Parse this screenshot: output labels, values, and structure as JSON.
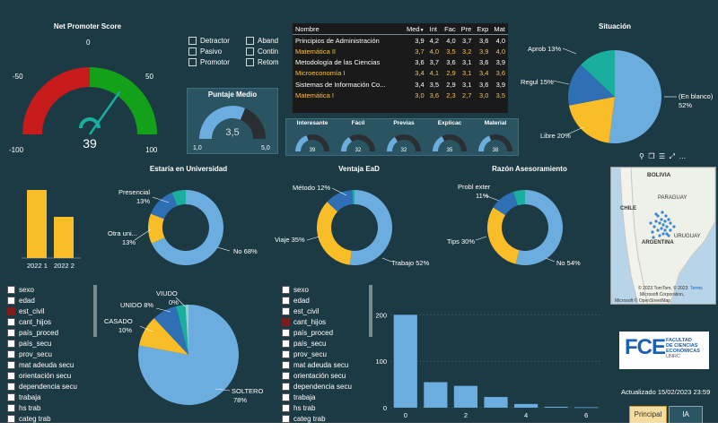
{
  "colors": {
    "bg": "#1c3a44",
    "blue": "#6cade0",
    "darkblue": "#2f6fb6",
    "yellow": "#f9bd27",
    "teal": "#1aae9f",
    "darkseg": "#2a2f33",
    "red": "#c81b1b",
    "green": "#13a11a"
  },
  "nps": {
    "title": "Net Promoter Score",
    "value": "39",
    "min": "-100",
    "max": "100",
    "tick_m50": "-50",
    "tick_0": "0",
    "tick_50": "50",
    "value_num": 39
  },
  "legend_nps": [
    {
      "label": "Detractor"
    },
    {
      "label": "Aband"
    },
    {
      "label": "Pasivo"
    },
    {
      "label": "Contin"
    },
    {
      "label": "Promotor"
    },
    {
      "label": "Retom"
    }
  ],
  "puntaje": {
    "title": "Puntaje Medio",
    "value": "3,5",
    "min": "1,0",
    "max": "5,0",
    "value_num": 3.5
  },
  "table": {
    "headers": [
      "Nombre",
      "Med",
      "Int",
      "Fac",
      "Pre",
      "Exp",
      "Mat"
    ],
    "rows": [
      {
        "name": "Principios de Administración",
        "vals": [
          "3,9",
          "4,2",
          "4,0",
          "3,7",
          "3,6",
          "4,0"
        ],
        "hl": false
      },
      {
        "name": "Matemática II",
        "vals": [
          "3,7",
          "4,0",
          "3,5",
          "3,2",
          "3,9",
          "4,0"
        ],
        "hl": true
      },
      {
        "name": "Metodología de las Ciencias",
        "vals": [
          "3,6",
          "3,7",
          "3,6",
          "3,1",
          "3,6",
          "3,9"
        ],
        "hl": false
      },
      {
        "name": "Microeconomía I",
        "vals": [
          "3,4",
          "4,1",
          "2,9",
          "3,1",
          "3,4",
          "3,6"
        ],
        "hl": true
      },
      {
        "name": "Sistemas de Información Co...",
        "vals": [
          "3,4",
          "3,5",
          "2,9",
          "3,1",
          "3,6",
          "3,9"
        ],
        "hl": false
      },
      {
        "name": "Matemática I",
        "vals": [
          "3,0",
          "3,6",
          "2,3",
          "2,7",
          "3,0",
          "3,5"
        ],
        "hl": true
      }
    ]
  },
  "mini_gauges": [
    {
      "label": "Interesante",
      "value": "39",
      "frac": 0.39
    },
    {
      "label": "Fácil",
      "value": "32",
      "frac": 0.32
    },
    {
      "label": "Previas",
      "value": "32",
      "frac": 0.32
    },
    {
      "label": "Explicac",
      "value": "35",
      "frac": 0.35
    },
    {
      "label": "Material",
      "value": "38",
      "frac": 0.38
    }
  ],
  "situacion": {
    "title": "Situación",
    "labels": {
      "aprob": "Aprob 13%",
      "regul": "Regul 15%",
      "libre": "Libre 20%",
      "blanco": "(En blanco)",
      "blanco_pct": "52%"
    }
  },
  "visual_icons": [
    "pin-icon",
    "copy-icon",
    "filter-icon",
    "focus-icon",
    "more-icon"
  ],
  "estaria": {
    "title": "Estaría en Universidad",
    "bars": [
      {
        "label": "2022 1",
        "value": 1.0
      },
      {
        "label": "2022 2",
        "value": 0.6
      }
    ],
    "labels": {
      "presencial": "Presencial",
      "presencial_pct": "13%",
      "otra": "Otra uni...",
      "otra_pct": "13%",
      "no": "No 68%"
    }
  },
  "ventaja": {
    "title": "Ventaja EaD",
    "labels": {
      "metodo": "Método 12%",
      "viaje": "Viaje 35%",
      "trabajo": "Trabajo 52%"
    }
  },
  "razon": {
    "title": "Razón Asesoramiento",
    "labels": {
      "probl": "Probl exter",
      "probl_pct": "11%",
      "tips": "Tips 30%",
      "no": "No 54%"
    }
  },
  "map": {
    "bolivia": "BOLIVIA",
    "paraguay": "PARAGUAY",
    "chile": "CHILE",
    "uruguay": "URUGUAY",
    "argentina": "ARGENTINA",
    "credit1": "© 2023 TomTom, © 2023",
    "credit1b": "Terms",
    "credit2": "Microsoft Corporation,",
    "credit3": "Microsoft © OpenStreetMap"
  },
  "fields_left": [
    {
      "label": "sexo",
      "red": false
    },
    {
      "label": "edad",
      "red": false
    },
    {
      "label": "est_civil",
      "red": true
    },
    {
      "label": "cant_hijos",
      "red": false
    },
    {
      "label": "país_proced",
      "red": false
    },
    {
      "label": "país_secu",
      "red": false
    },
    {
      "label": "prov_secu",
      "red": false
    },
    {
      "label": "mat adeuda secu",
      "red": false
    },
    {
      "label": "orientación secu",
      "red": false
    },
    {
      "label": "dependencia secu",
      "red": false
    },
    {
      "label": "trabaja",
      "red": false
    },
    {
      "label": "hs trab",
      "red": false
    },
    {
      "label": "categ trab",
      "red": false
    }
  ],
  "fields_right": [
    {
      "label": "sexo",
      "red": false
    },
    {
      "label": "edad",
      "red": false
    },
    {
      "label": "est_civil",
      "red": false
    },
    {
      "label": "cant_hijos",
      "red": true
    },
    {
      "label": "país_proced",
      "red": false
    },
    {
      "label": "país_secu",
      "red": false
    },
    {
      "label": "prov_secu",
      "red": false
    },
    {
      "label": "mat adeuda secu",
      "red": false
    },
    {
      "label": "orientación secu",
      "red": false
    },
    {
      "label": "dependencia secu",
      "red": false
    },
    {
      "label": "trabaja",
      "red": false
    },
    {
      "label": "hs trab",
      "red": false
    },
    {
      "label": "categ trab",
      "red": false
    }
  ],
  "civil": {
    "labels": {
      "viudo": "VIUDO",
      "viudo_pct": "0%",
      "unido": "UNIDO 8%",
      "casado": "CASADO",
      "casado_pct": "10%",
      "soltero": "SOLTERO",
      "soltero_pct": "78%"
    }
  },
  "chart_data": {
    "type": "bar",
    "x": [
      0,
      1,
      2,
      3,
      4,
      5,
      6
    ],
    "values": [
      200,
      55,
      47,
      23,
      8,
      2,
      1
    ],
    "xticks": [
      "0",
      "2",
      "4",
      "6"
    ],
    "yticks": [
      "0",
      "100",
      "200"
    ],
    "ylim": [
      0,
      220
    ]
  },
  "logo": {
    "big": "FCE",
    "line1": "FACULTAD",
    "line2": "DE CIENCIAS",
    "line3": "ECONÓMICAS",
    "line4": "UNRC"
  },
  "updated": "Actualizado 15/02/2023 23:59",
  "buttons": {
    "principal": "Principal",
    "ia": "IA"
  }
}
